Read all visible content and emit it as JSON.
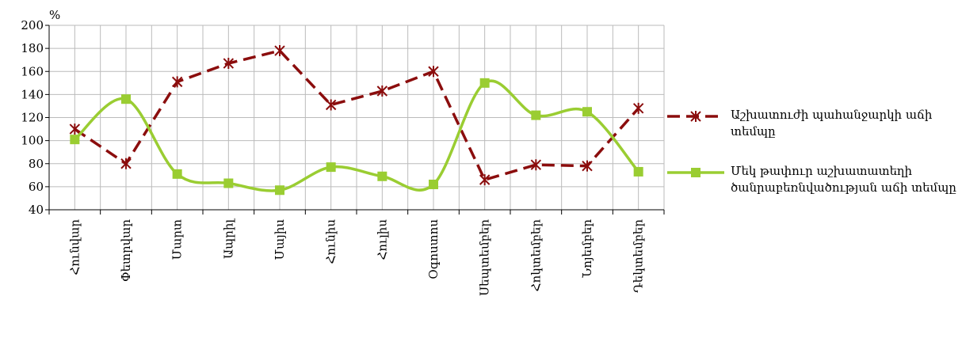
{
  "chart_data": {
    "type": "line",
    "ylabel": "%",
    "categories": [
      "Հունվար",
      "Փետրվար",
      "Մարտ",
      "Ապրիլ",
      "Մայիս",
      "Հունիս",
      "Հուլիս",
      "Օգոստոս",
      "Սեպտեմբեր",
      "Հոկտեմբեր",
      "Նոյեմբեր",
      "Դեկտեմբեր"
    ],
    "series": [
      {
        "name": "Աշխատուժի պահանջարկի աճի տեմպը",
        "color": "#8b0d0d",
        "style": "dashed",
        "smooth": false,
        "marker": "asterisk",
        "values": [
          110,
          80,
          151,
          167,
          178,
          131,
          143,
          160,
          66,
          79,
          78,
          128
        ]
      },
      {
        "name": "Մեկ թափուր աշխատատեղի ծանրաբեռնվածության աճի տեմպը",
        "color": "#9acd32",
        "style": "solid",
        "smooth": true,
        "marker": "square",
        "values": [
          101,
          136,
          71,
          63,
          57,
          77,
          69,
          62,
          150,
          122,
          125,
          73
        ]
      }
    ],
    "ylim": [
      40,
      200
    ],
    "yticks": [
      40,
      60,
      80,
      100,
      120,
      140,
      160,
      180,
      200
    ],
    "grid": true,
    "legend": "right"
  }
}
